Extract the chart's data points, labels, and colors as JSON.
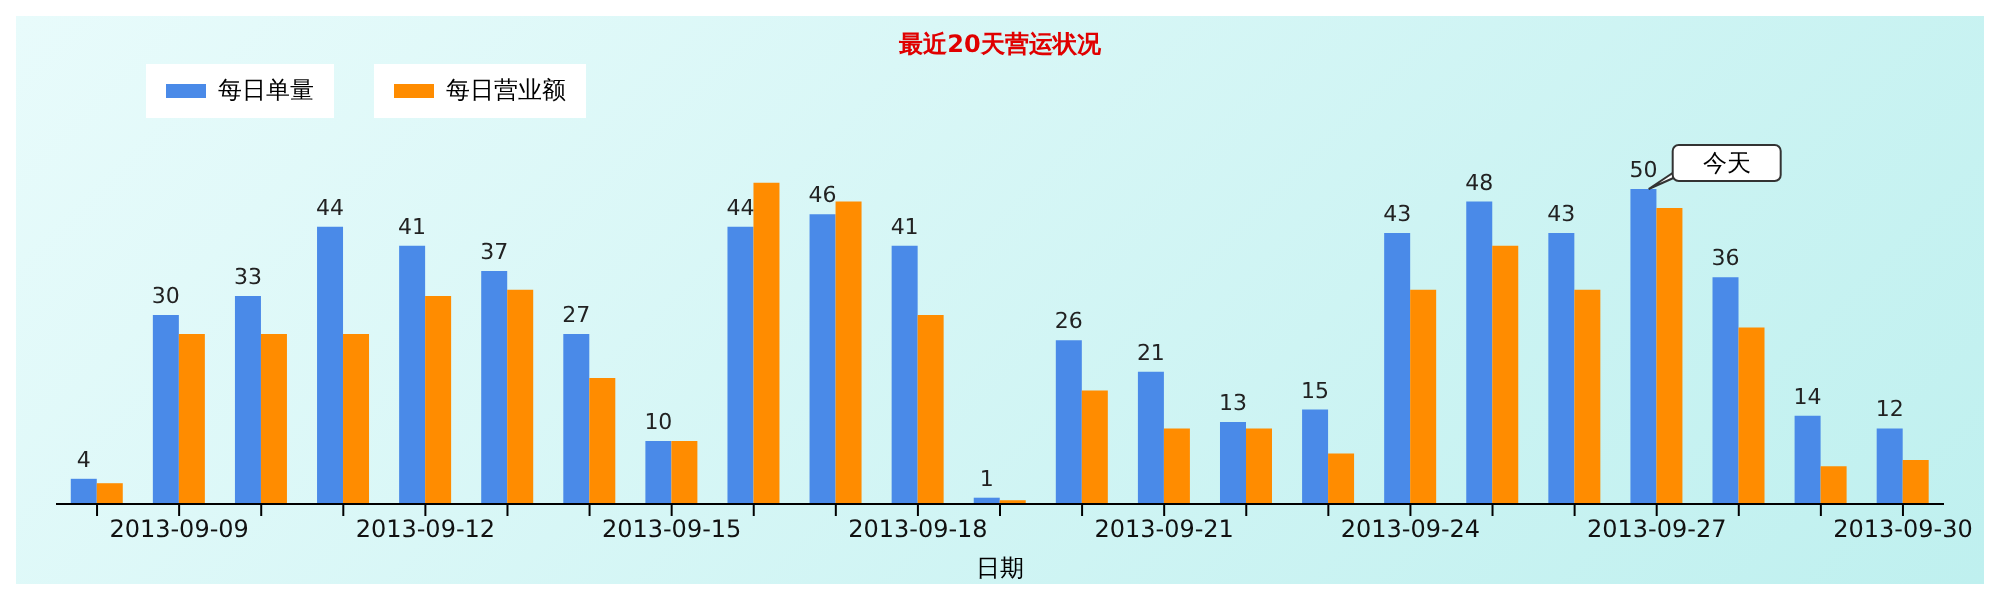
{
  "chart_data": {
    "type": "bar",
    "title": "最近20天营运状况",
    "xlabel": "日期",
    "categories": [
      null,
      "2013-09-09",
      null,
      null,
      "2013-09-12",
      null,
      null,
      "2013-09-15",
      null,
      null,
      "2013-09-18",
      null,
      null,
      "2013-09-21",
      null,
      null,
      "2013-09-24",
      null,
      null,
      "2013-09-27",
      null,
      null,
      "2013-09-30"
    ],
    "series": [
      {
        "name": "每日单量",
        "color": "#4a8ae8",
        "values": [
          4,
          30,
          33,
          44,
          41,
          37,
          27,
          10,
          44,
          46,
          41,
          1,
          26,
          21,
          13,
          15,
          43,
          48,
          43,
          50,
          36,
          14,
          12
        ],
        "value_labels": [
          "4",
          "30",
          "33",
          "44",
          "41",
          "37",
          "27",
          "10",
          "44",
          "46",
          "41",
          "1",
          "26",
          "21",
          "13",
          "15",
          "43",
          "48",
          "43",
          "50",
          "36",
          "14",
          "12"
        ]
      },
      {
        "name": "每日营业额",
        "color": "#ff8c00",
        "values": [
          3.3,
          27,
          27,
          27,
          33,
          34,
          20,
          10,
          51,
          48,
          30,
          0.6,
          18,
          12,
          12,
          8,
          34,
          41,
          34,
          47,
          28,
          6,
          7
        ]
      }
    ],
    "tick_labels": "x",
    "legend": "top left",
    "annotations": [
      {
        "text": "今天",
        "x": "2013-09-27",
        "y": 50
      }
    ]
  }
}
